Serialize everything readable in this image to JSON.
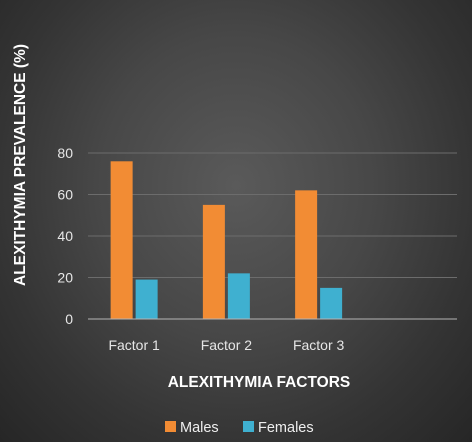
{
  "chart_data": {
    "type": "bar",
    "title": "",
    "xlabel": "ALEXITHYMIA FACTORS",
    "ylabel": "ALEXITHYMIA PREVALENCE (%)",
    "categories": [
      "Factor 1",
      "Factor 2",
      "Factor 3",
      ""
    ],
    "series": [
      {
        "name": "Males",
        "values": [
          76,
          55,
          62,
          null
        ],
        "color": "#f28c34"
      },
      {
        "name": "Females",
        "values": [
          19,
          22,
          15,
          null
        ],
        "color": "#3fb0d0"
      }
    ],
    "ylim": [
      0,
      80
    ],
    "yticks": [
      0,
      20,
      40,
      60,
      80
    ],
    "grid": true,
    "legend": "bottom-center"
  }
}
